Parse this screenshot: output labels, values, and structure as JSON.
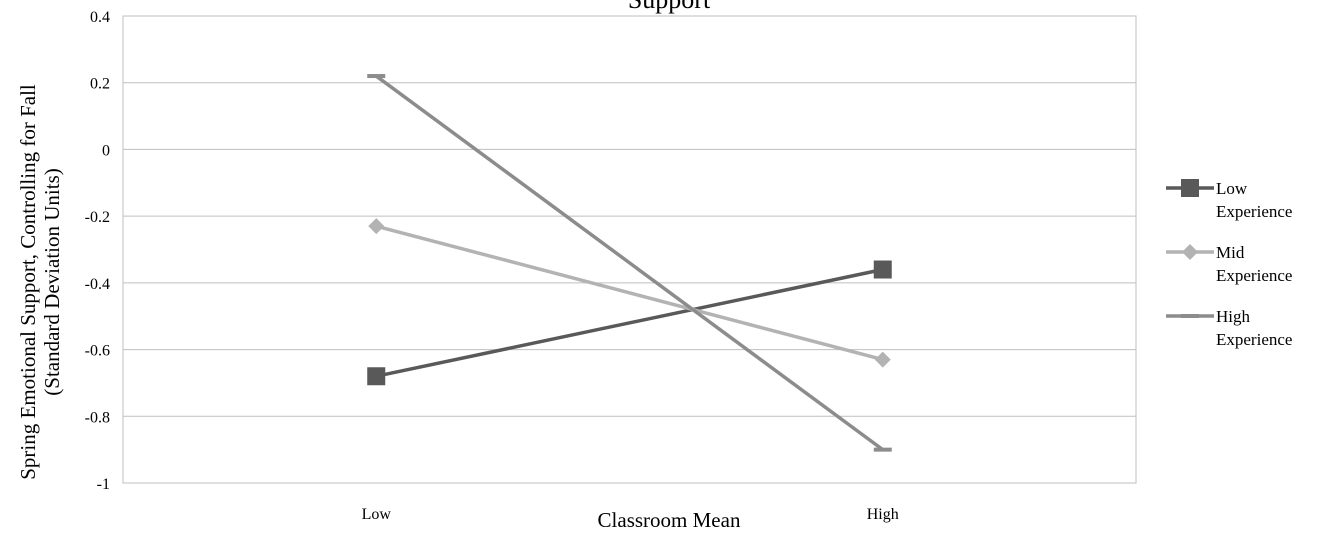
{
  "chart_data": {
    "type": "line",
    "title": "Support",
    "xlabel": "Classroom Mean",
    "ylabel": [
      "Spring Emotional Support, Controlling for Fall",
      "(Standard Deviation Units)"
    ],
    "categories": [
      "Low",
      "High"
    ],
    "ylim": [
      -1,
      0.4
    ],
    "yticks": [
      0.4,
      0.2,
      0,
      -0.2,
      -0.4,
      -0.6,
      -0.8,
      -1
    ],
    "ytick_labels": [
      "0.4",
      "0.2",
      "0",
      "-0.2",
      "-0.4",
      "-0.6",
      "-0.8",
      "-1"
    ],
    "grid": true,
    "legend_position": "right",
    "series": [
      {
        "name": [
          "Low",
          "Experience"
        ],
        "values": [
          -0.68,
          -0.36
        ],
        "color": "#595959",
        "marker": "square"
      },
      {
        "name": [
          "Mid",
          "Experience"
        ],
        "values": [
          -0.23,
          -0.63
        ],
        "color": "#b3b3b3",
        "marker": "diamond"
      },
      {
        "name": [
          "High",
          "Experience"
        ],
        "values": [
          0.22,
          -0.9
        ],
        "color": "#8c8c8c",
        "marker": "dash"
      }
    ]
  }
}
